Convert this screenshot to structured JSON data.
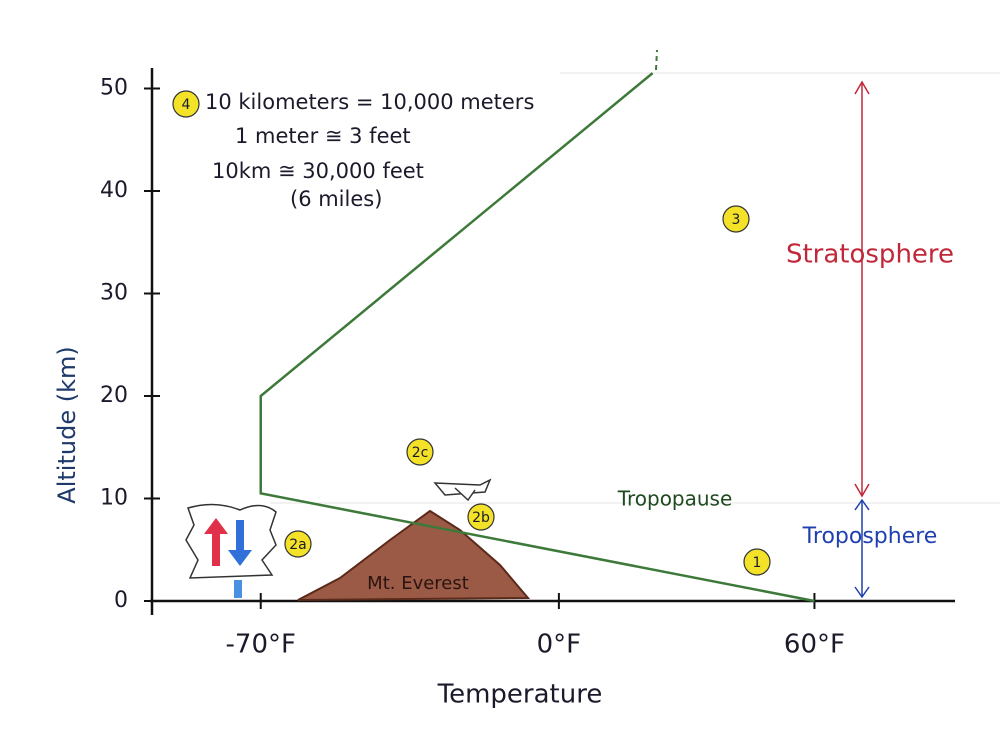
{
  "chart_data": {
    "type": "line",
    "x_label": "Temperature",
    "y_label": "Altitude (km)",
    "x": [
      60,
      -70,
      -70,
      22
    ],
    "values": [
      0,
      10.5,
      20,
      51.5
    ],
    "color": "#3d7a3a",
    "xlim": [
      -96,
      93
    ],
    "ylim": [
      0,
      52
    ],
    "xticks": [
      {
        "value": -70,
        "label": "-70°F"
      },
      {
        "value": 0,
        "label": "0°F"
      },
      {
        "value": 60,
        "label": "60°F"
      }
    ],
    "yticks": [
      0,
      10,
      20,
      30,
      40,
      50
    ],
    "notes": [
      "10 kilometers = 10,000 meters",
      "1 meter ≅ 3 feet",
      "10km ≅ 30,000 feet",
      "(6 miles)"
    ],
    "markers": [
      "4",
      "3",
      "2c",
      "2b",
      "2a",
      "1"
    ],
    "labels": [
      "Stratosphere",
      "Troposphere",
      "Tropopause",
      "Mt. Everest"
    ]
  }
}
